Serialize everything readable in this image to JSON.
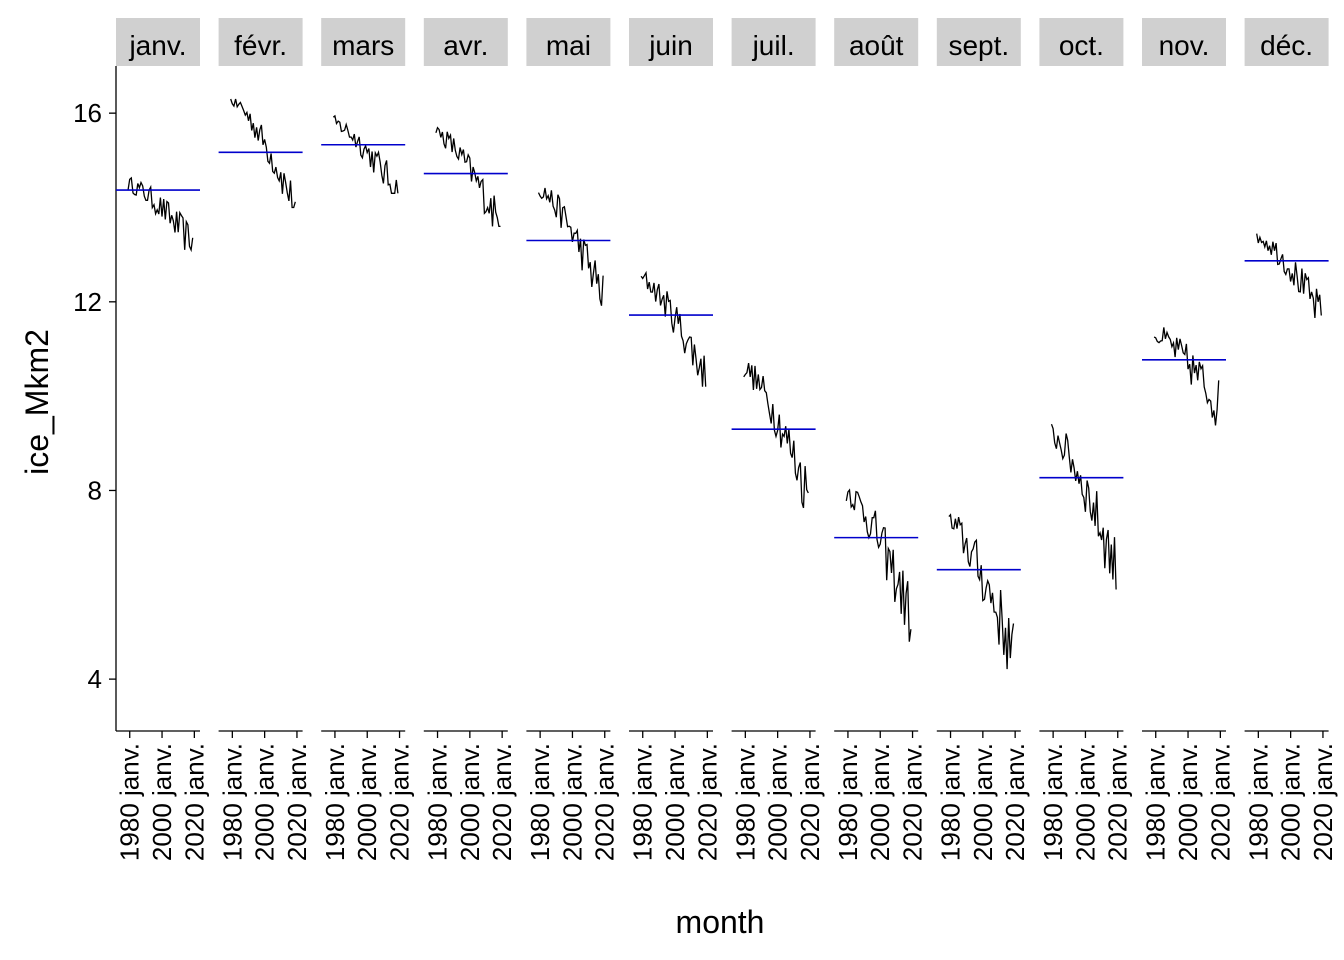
{
  "chart_data": {
    "type": "line",
    "facet_by": "month",
    "xlabel": "month",
    "ylabel": "ice_Mkm2",
    "ylim": [
      2.9,
      17.0
    ],
    "y_ticks": [
      4,
      8,
      12,
      16
    ],
    "x_ticks": [
      "1980 janv.",
      "2000 janv.",
      "2020 janv."
    ],
    "x_tick_years": [
      1980,
      2000,
      2020
    ],
    "x_range_years": [
      1971.5,
      2023.5
    ],
    "grid": false,
    "legend": "none",
    "line_color": "#000000",
    "mean_line_color": "#0000cc",
    "strip_color": "#d0d0d0",
    "panels": [
      {
        "label": "janv.",
        "mean": 14.37,
        "start": 14.5,
        "end": 13.2,
        "peak": 15.2,
        "trough": 13.1
      },
      {
        "label": "févr.",
        "mean": 15.17,
        "start": 16.3,
        "end": 14.0,
        "peak": 16.3,
        "trough": 14.0
      },
      {
        "label": "mars",
        "mean": 15.33,
        "start": 15.8,
        "end": 14.3,
        "peak": 16.4,
        "trough": 14.3
      },
      {
        "label": "avr.",
        "mean": 14.72,
        "start": 15.6,
        "end": 13.6,
        "peak": 16.0,
        "trough": 13.6
      },
      {
        "label": "mai",
        "mean": 13.3,
        "start": 14.4,
        "end": 12.1,
        "peak": 14.6,
        "trough": 11.8
      },
      {
        "label": "juin",
        "mean": 11.72,
        "start": 12.5,
        "end": 10.4,
        "peak": 12.9,
        "trough": 10.2
      },
      {
        "label": "juil.",
        "mean": 9.3,
        "start": 10.6,
        "end": 7.9,
        "peak": 10.7,
        "trough": 7.4
      },
      {
        "label": "août",
        "mean": 7.0,
        "start": 8.0,
        "end": 5.3,
        "peak": 8.2,
        "trough": 4.5
      },
      {
        "label": "sept.",
        "mean": 6.32,
        "start": 7.3,
        "end": 4.5,
        "peak": 7.7,
        "trough": 3.5
      },
      {
        "label": "oct.",
        "mean": 8.27,
        "start": 9.2,
        "end": 6.3,
        "peak": 9.7,
        "trough": 5.9
      },
      {
        "label": "nov.",
        "mean": 10.77,
        "start": 11.3,
        "end": 9.8,
        "peak": 11.8,
        "trough": 8.8
      },
      {
        "label": "déc.",
        "mean": 12.87,
        "start": 13.4,
        "end": 11.7,
        "peak": 13.7,
        "trough": 11.4
      }
    ]
  }
}
